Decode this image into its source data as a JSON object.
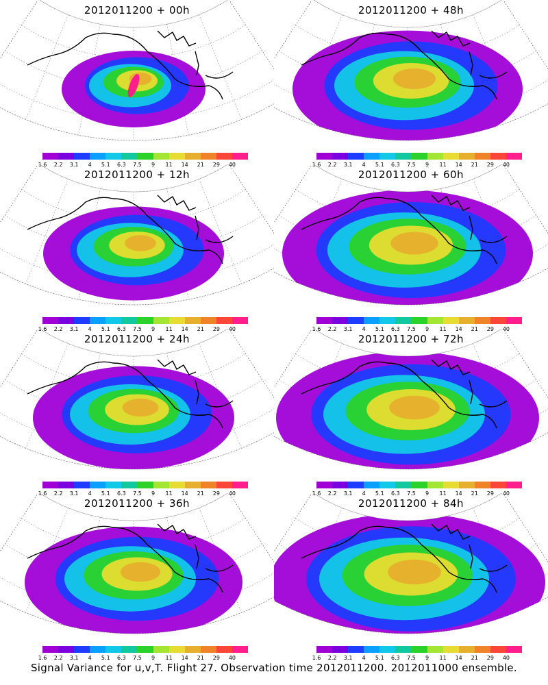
{
  "colorbar": {
    "labels": [
      "1.6",
      "2.2",
      "3.1",
      "4",
      "5.1",
      "6.3",
      "7.5",
      "9",
      "11",
      "14",
      "21",
      "29",
      "40"
    ],
    "colors": [
      "#a000d6",
      "#7a00e0",
      "#1e3cff",
      "#0aa0ff",
      "#12c8e8",
      "#12c8a0",
      "#2ad22a",
      "#a0e632",
      "#e6dc32",
      "#e6af2d",
      "#f08228",
      "#fa4638",
      "#ff1e8c"
    ]
  },
  "panels": [
    {
      "title": "2012011200 + 00h",
      "spread": 0.3
    },
    {
      "title": "2012011200 + 48h",
      "spread": 0.72
    },
    {
      "title": "2012011200 + 12h",
      "spread": 0.48
    },
    {
      "title": "2012011200 + 60h",
      "spread": 0.82
    },
    {
      "title": "2012011200 + 24h",
      "spread": 0.58
    },
    {
      "title": "2012011200 + 72h",
      "spread": 0.88
    },
    {
      "title": "2012011200 + 36h",
      "spread": 0.66
    },
    {
      "title": "2012011200 + 84h",
      "spread": 0.94
    }
  ],
  "caption": "Signal Variance for u,v,T. Flight 27. Observation time 2012011200. 2012011000 ensemble."
}
